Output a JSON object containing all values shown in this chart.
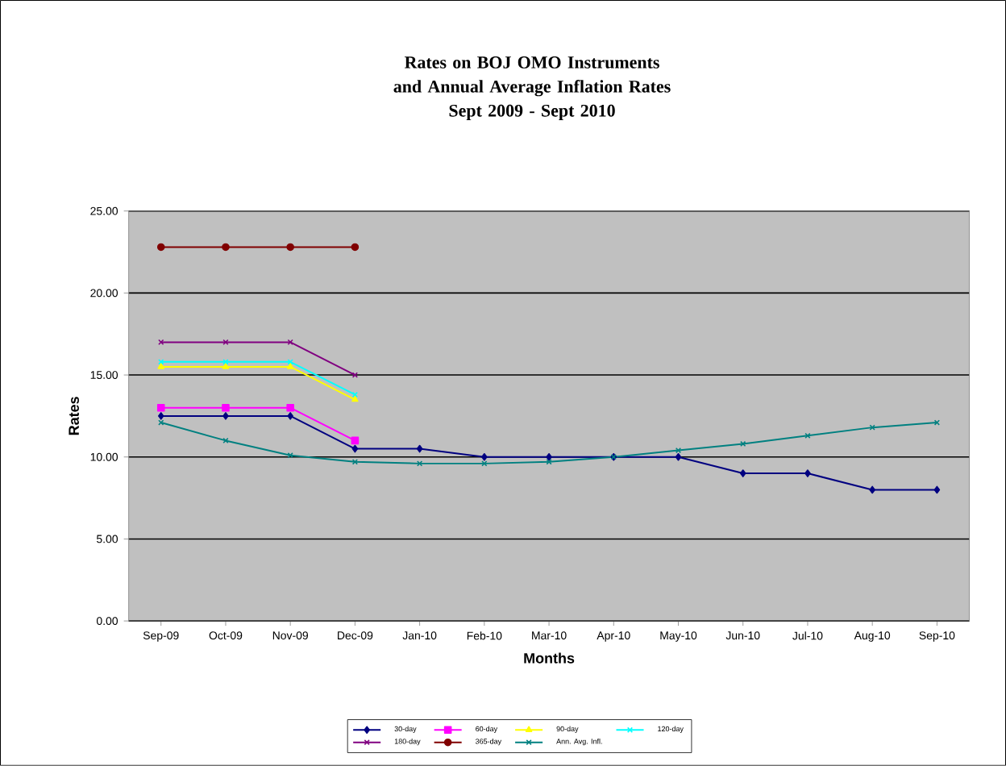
{
  "chart_data": {
    "type": "line",
    "title": "Rates on BOJ OMO Instruments and Annual Average Inflation Rates",
    "subtitle": "Sept 2009 - Sept 2010",
    "xlabel": "Months",
    "ylabel": "Rates",
    "categories": [
      "Sep-09",
      "Oct-09",
      "Nov-09",
      "Dec-09",
      "Jan-10",
      "Feb-10",
      "Mar-10",
      "Apr-10",
      "May-10",
      "Jun-10",
      "Jul-10",
      "Aug-10",
      "Sep-10"
    ],
    "series": [
      {
        "name": "30-day",
        "color": "#000080",
        "marker": "diamond",
        "values": [
          12.5,
          12.5,
          12.5,
          10.5,
          10.5,
          10.0,
          10.0,
          10.0,
          10.0,
          9.0,
          9.0,
          8.0,
          8.0
        ]
      },
      {
        "name": "60-day",
        "color": "#ff00ff",
        "marker": "square",
        "values": [
          13.0,
          13.0,
          13.0,
          11.0,
          null,
          null,
          null,
          null,
          null,
          null,
          null,
          null,
          null
        ]
      },
      {
        "name": "90-day",
        "color": "#ffff00",
        "marker": "triangle",
        "values": [
          15.5,
          15.5,
          15.5,
          13.5,
          null,
          null,
          null,
          null,
          null,
          null,
          null,
          null,
          null
        ]
      },
      {
        "name": "120-day",
        "color": "#00ffff",
        "marker": "cross",
        "values": [
          15.8,
          15.8,
          15.8,
          13.8,
          null,
          null,
          null,
          null,
          null,
          null,
          null,
          null,
          null
        ]
      },
      {
        "name": "180-day",
        "color": "#800080",
        "marker": "cross",
        "values": [
          17.0,
          17.0,
          17.0,
          15.0,
          null,
          null,
          null,
          null,
          null,
          null,
          null,
          null,
          null
        ]
      },
      {
        "name": "365-day",
        "color": "#800000",
        "marker": "circle",
        "values": [
          22.8,
          22.8,
          22.8,
          22.8,
          null,
          null,
          null,
          null,
          null,
          null,
          null,
          null,
          null
        ]
      },
      {
        "name": "Ann. Avg. Infl.",
        "color": "#008080",
        "marker": "cross",
        "values": [
          12.1,
          11.0,
          10.1,
          9.7,
          9.6,
          9.6,
          9.7,
          10.0,
          10.4,
          10.8,
          11.3,
          11.8,
          12.1
        ]
      }
    ],
    "ylim": [
      0,
      25
    ],
    "yticks": [
      {
        "value": 0,
        "label": "0.00"
      },
      {
        "value": 5,
        "label": "5.00"
      },
      {
        "value": 10,
        "label": "10.00"
      },
      {
        "value": 15,
        "label": "15.00"
      },
      {
        "value": 20,
        "label": "20.00"
      },
      {
        "value": 25,
        "label": "25.00"
      }
    ],
    "grid": "y",
    "legend": "bottom"
  }
}
